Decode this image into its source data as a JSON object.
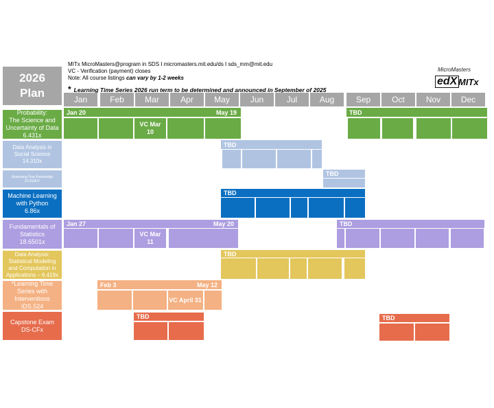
{
  "title": {
    "line1": "2026",
    "line2": "Plan"
  },
  "header": {
    "line1": "MITx MicroMasters@program in SDS I micromasters.mit.edu/ds I sds_mm@mit.edu",
    "line2": "VC - Verification (payment) closes",
    "note_prefix": "Note: All course listings ",
    "note_emph": "can vary by 1-2 weeks",
    "star": "*",
    "time_series_note": "Learning Time Series 2026 run term to be determined and announced in September of 2025"
  },
  "logos": {
    "micromasters": "MicroMasters",
    "edx": "edX",
    "mitx": "MITx"
  },
  "months": [
    "Jan",
    "Feb",
    "Mar",
    "Apr",
    "May",
    "Jun",
    "Jul",
    "Aug",
    "Sep",
    "Oct",
    "Nov",
    "Dec"
  ],
  "colors": {
    "gray": "#a6a6a6",
    "probability": "#6aab46",
    "data_analysis_social": "#b0c4e2",
    "assessing": "#b0c4e2",
    "machine_learning": "#0b6fc1",
    "fundamentals": "#ac9ee0",
    "data_analysis_stat": "#e3c65c",
    "time_series": "#f4b183",
    "capstone": "#e66c4c"
  },
  "courses": [
    {
      "name": "Probability:\nThe Science and\nUncertainty of Data\n6.431x",
      "bars": [
        {
          "start_label": "Jan 20",
          "end_label": "May 19"
        },
        {
          "start_label": "TBD",
          "end_label": ""
        }
      ],
      "vc": "VC Mar\n10"
    },
    {
      "name": "Data Analysis in\nSocial Science\n14.310x",
      "bars": [
        {
          "start_label": "TBD",
          "end_label": ""
        }
      ]
    },
    {
      "name": "Assessing Your Knowledge\n14.310Fx*",
      "bars": [
        {
          "start_label": "TBD",
          "end_label": ""
        }
      ]
    },
    {
      "name": "Machine Learning\nwith Python\n6.86x",
      "bars": [
        {
          "start_label": "TBD",
          "end_label": ""
        }
      ]
    },
    {
      "name": "Fundamentals of\nStatistics\n18.6501x",
      "bars": [
        {
          "start_label": "Jan 27",
          "end_label": "May 20"
        },
        {
          "start_label": "TBD",
          "end_label": ""
        }
      ],
      "vc": "VC Mar\n11"
    },
    {
      "name": "Data Analysis:\nStatistical Modeling\nand Computation in\nApplications – 6.419x",
      "bars": [
        {
          "start_label": "TBD",
          "end_label": ""
        }
      ]
    },
    {
      "name": "*Learning Time\nSeries with\nInterventions\nIDS.524",
      "bars": [
        {
          "start_label": "Feb 3",
          "end_label": "May 12"
        }
      ],
      "vc": "VC April 31"
    },
    {
      "name": "Capstone Exam\nDS-CFx",
      "bars": [
        {
          "start_label": "TBD",
          "end_label": ""
        },
        {
          "start_label": "TBD",
          "end_label": ""
        }
      ]
    }
  ]
}
